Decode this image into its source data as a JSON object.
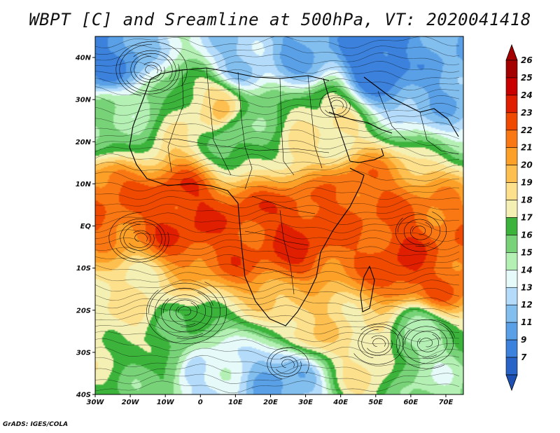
{
  "title": "WBPT [C] and Sreamline at 500hPa, VT: 2020041418",
  "footer": "GrADS: IGES/COLA",
  "map": {
    "lon_range": [
      -30,
      75
    ],
    "lat_range": [
      -40,
      45
    ],
    "lat_ticks": [
      {
        "value": 40,
        "label": "40N"
      },
      {
        "value": 30,
        "label": "30N"
      },
      {
        "value": 20,
        "label": "20N"
      },
      {
        "value": 10,
        "label": "10N"
      },
      {
        "value": 0,
        "label": "EQ"
      },
      {
        "value": -10,
        "label": "10S"
      },
      {
        "value": -20,
        "label": "20S"
      },
      {
        "value": -30,
        "label": "30S"
      },
      {
        "value": -40,
        "label": "40S"
      }
    ],
    "lon_ticks": [
      {
        "value": -30,
        "label": "30W"
      },
      {
        "value": -20,
        "label": "20W"
      },
      {
        "value": -10,
        "label": "10W"
      },
      {
        "value": 0,
        "label": "0"
      },
      {
        "value": 10,
        "label": "10E"
      },
      {
        "value": 20,
        "label": "20E"
      },
      {
        "value": 30,
        "label": "30E"
      },
      {
        "value": 40,
        "label": "40E"
      },
      {
        "value": 50,
        "label": "50E"
      },
      {
        "value": 60,
        "label": "60E"
      },
      {
        "value": 70,
        "label": "70E"
      }
    ]
  },
  "colorbar": {
    "levels": [
      {
        "label": "26",
        "color": "#a50000"
      },
      {
        "label": "25",
        "color": "#c80000"
      },
      {
        "label": "24",
        "color": "#e01e00"
      },
      {
        "label": "23",
        "color": "#f04a00"
      },
      {
        "label": "22",
        "color": "#fa7814"
      },
      {
        "label": "21",
        "color": "#fca028"
      },
      {
        "label": "20",
        "color": "#fdc050"
      },
      {
        "label": "19",
        "color": "#fde08c"
      },
      {
        "label": "18",
        "color": "#f4f0b4"
      },
      {
        "label": "17",
        "color": "#3cb43c"
      },
      {
        "label": "16",
        "color": "#78d278"
      },
      {
        "label": "15",
        "color": "#b4f0b4"
      },
      {
        "label": "14",
        "color": "#e6fafa"
      },
      {
        "label": "13",
        "color": "#b4dcfa"
      },
      {
        "label": "12",
        "color": "#82beee"
      },
      {
        "label": "11",
        "color": "#5aa0e6"
      },
      {
        "label": "9",
        "color": "#3c82dc"
      },
      {
        "label": "7",
        "color": "#2864c8"
      }
    ],
    "bottom_color": "#1e50b4"
  },
  "field_centers": [
    {
      "lon": -5,
      "lat": 3,
      "value": 24
    },
    {
      "lon": 12,
      "lat": 0,
      "value": 23.5
    },
    {
      "lon": 28,
      "lat": -3,
      "value": 24
    },
    {
      "lon": 45,
      "lat": 4,
      "value": 23
    },
    {
      "lon": 58,
      "lat": -10,
      "value": 24
    },
    {
      "lon": 68,
      "lat": -12,
      "value": 23
    },
    {
      "lon": -25,
      "lat": 6,
      "value": 23
    },
    {
      "lon": -27,
      "lat": 40,
      "value": 11
    },
    {
      "lon": 50,
      "lat": 41,
      "value": 10
    },
    {
      "lon": 68,
      "lat": 40,
      "value": 12
    },
    {
      "lon": 10,
      "lat": 40,
      "value": 13
    },
    {
      "lon": 30,
      "lat": 42,
      "value": 12
    },
    {
      "lon": -25,
      "lat": 25,
      "value": 16
    },
    {
      "lon": 10,
      "lat": 22,
      "value": 16.5
    },
    {
      "lon": 62,
      "lat": -26,
      "value": 16
    },
    {
      "lon": 65,
      "lat": -32,
      "value": 15.5
    },
    {
      "lon": 24,
      "lat": -37,
      "value": 12
    },
    {
      "lon": 0,
      "lat": -37,
      "value": 14
    },
    {
      "lon": -10,
      "lat": -30,
      "value": 17
    },
    {
      "lon": -20,
      "lat": -18,
      "value": 19
    },
    {
      "lon": 5,
      "lat": 28,
      "value": 19.5
    },
    {
      "lon": 35,
      "lat": 25,
      "value": 19
    },
    {
      "lon": 30,
      "lat": -22,
      "value": 20
    },
    {
      "lon": 48,
      "lat": -30,
      "value": 19
    }
  ]
}
